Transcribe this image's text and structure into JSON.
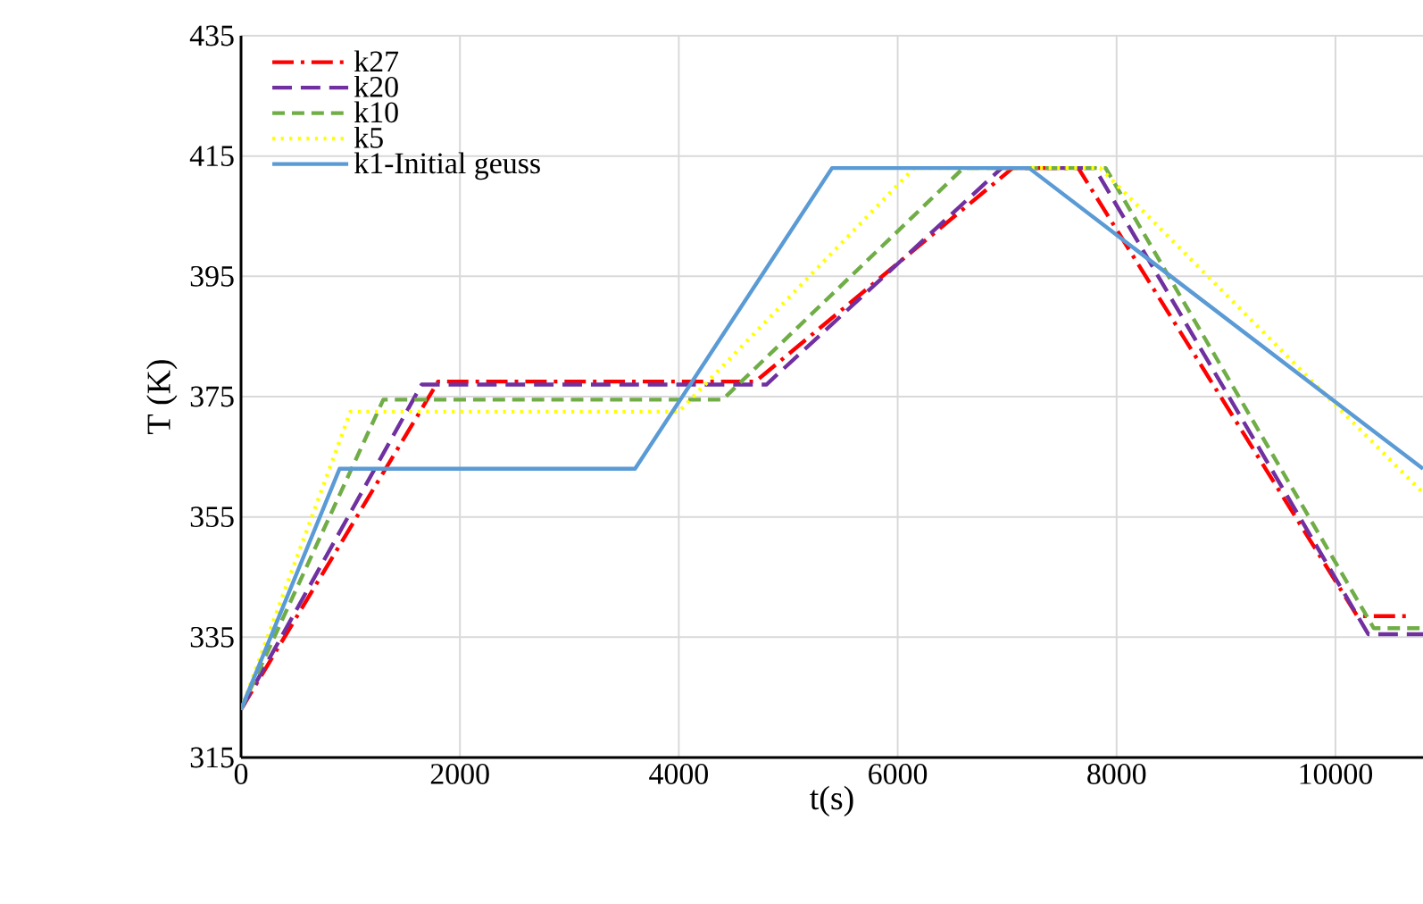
{
  "chart_data": {
    "type": "line",
    "xlabel": "t(s)",
    "ylabel": "T (K)",
    "xlim": [
      0,
      10800
    ],
    "ylim": [
      315,
      435
    ],
    "xticks": [
      0,
      2000,
      4000,
      6000,
      8000,
      10000
    ],
    "yticks": [
      315,
      335,
      355,
      375,
      395,
      415,
      435
    ],
    "grid": true,
    "legend": "top left",
    "marker": "none",
    "series": [
      {
        "name": "k27",
        "color": "#ff0000",
        "line_style": "dash dot",
        "x": [
          0,
          1800,
          4700,
          7050,
          7650,
          10200,
          10650
        ],
        "values": [
          323,
          377.5,
          377.5,
          413,
          413,
          338.5,
          338.5
        ]
      },
      {
        "name": "k20",
        "color": "#7030a0",
        "line_style": "long dash",
        "x": [
          0,
          1650,
          4800,
          6950,
          7800,
          10300,
          10800
        ],
        "values": [
          323,
          377,
          377,
          413,
          413,
          335.5,
          335.5
        ]
      },
      {
        "name": "k10",
        "color": "#70ad47",
        "line_style": "dashed",
        "x": [
          0,
          1300,
          4400,
          6600,
          7900,
          10350,
          10800
        ],
        "values": [
          323,
          374.5,
          374.5,
          413,
          413,
          336.5,
          336.5
        ]
      },
      {
        "name": "k5",
        "color": "#ffff00",
        "line_style": "dotted",
        "x": [
          0,
          1000,
          4000,
          6150,
          7850,
          10800
        ],
        "values": [
          323,
          372.5,
          372.5,
          413,
          413,
          359
        ]
      },
      {
        "name": "k1-Initial geuss",
        "color": "#5b9bd5",
        "line_style": "solid",
        "x": [
          0,
          900,
          3600,
          5400,
          7200,
          10800
        ],
        "values": [
          323,
          363,
          363,
          413,
          413,
          363
        ]
      }
    ]
  }
}
